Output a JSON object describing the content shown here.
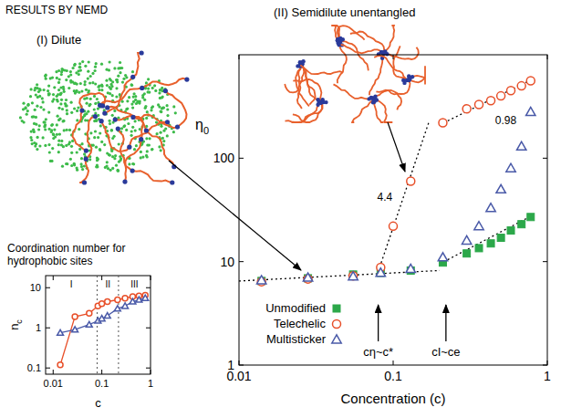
{
  "header": {
    "title": "RESULTS BY NEMD"
  },
  "illustrations": {
    "dilute": "(I) Dilute",
    "semidilute": "(II) Semidilute unentangled"
  },
  "chart_data": [
    {
      "type": "scatter",
      "x_label": "Concentration (c)",
      "y_label": "η0",
      "log": true,
      "xlim": [
        0.01,
        1
      ],
      "ylim": [
        1,
        1000
      ],
      "xticks": [
        0.01,
        0.1,
        1
      ],
      "yticks": [
        1,
        10,
        100
      ],
      "legend": "lower left",
      "series": [
        {
          "name": "Unmodified",
          "color": "#2ca84a",
          "marker": "square",
          "x": [
            0.014,
            0.028,
            0.055,
            0.083,
            0.13,
            0.21,
            0.3,
            0.36,
            0.43,
            0.5,
            0.58,
            0.68,
            0.78
          ],
          "values": [
            6.5,
            6.9,
            7.5,
            7.8,
            8.2,
            9.8,
            12,
            13.5,
            15,
            17,
            20,
            23,
            27
          ]
        },
        {
          "name": "Telechelic",
          "color": "#e8502a",
          "marker": "circle",
          "x": [
            0.014,
            0.028,
            0.055,
            0.083,
            0.1,
            0.13,
            0.21,
            0.3,
            0.36,
            0.43,
            0.5,
            0.58,
            0.68,
            0.78
          ],
          "values": [
            6.4,
            6.8,
            7.3,
            8.8,
            22,
            60,
            220,
            300,
            330,
            360,
            400,
            450,
            500,
            560
          ]
        },
        {
          "name": "Multisticker",
          "color": "#4a5aa8",
          "marker": "triangle",
          "x": [
            0.014,
            0.028,
            0.055,
            0.083,
            0.13,
            0.21,
            0.3,
            0.36,
            0.43,
            0.5,
            0.58,
            0.68,
            0.78
          ],
          "values": [
            6.6,
            7,
            7.2,
            7.8,
            8.5,
            11,
            16,
            22,
            33,
            50,
            80,
            130,
            280
          ]
        }
      ],
      "fit_lines": [
        {
          "x": [
            0.01,
            0.2
          ],
          "values": [
            6.5,
            8.2
          ],
          "line_style": "dotted"
        },
        {
          "x": [
            0.08,
            0.17
          ],
          "values": [
            8,
            220
          ],
          "label": "4.4",
          "line_style": "dotted"
        },
        {
          "x": [
            0.2,
            0.8
          ],
          "values": [
            210,
            580
          ],
          "label": "0.98",
          "line_style": "dotted"
        },
        {
          "x": [
            0.2,
            0.8
          ],
          "values": [
            9.5,
            28
          ],
          "line_style": "dotted"
        }
      ],
      "markers": [
        {
          "text": "cη~c*",
          "x": 0.08
        },
        {
          "text": "cI~ce",
          "x": 0.22
        }
      ]
    },
    {
      "type": "line",
      "title": "Coordination number for hydrophobic sites",
      "x_label": "c",
      "y_label": "nc",
      "log": true,
      "xlim": [
        0.007,
        1
      ],
      "ylim": [
        0.07,
        20
      ],
      "xticks": [
        0.01,
        0.1,
        1
      ],
      "yticks": [
        0.1,
        1,
        10
      ],
      "series": [
        {
          "color": "#e8502a",
          "marker": "circle",
          "x": [
            0.014,
            0.028,
            0.055,
            0.083,
            0.1,
            0.13,
            0.21,
            0.3,
            0.43,
            0.58,
            0.78
          ],
          "values": [
            0.12,
            1.9,
            2.3,
            3.5,
            4,
            4.5,
            5,
            5.5,
            6,
            6.2,
            6.5
          ]
        },
        {
          "color": "#4a5aa8",
          "marker": "triangle",
          "x": [
            0.014,
            0.028,
            0.055,
            0.083,
            0.1,
            0.13,
            0.21,
            0.3,
            0.43,
            0.58,
            0.78
          ],
          "values": [
            0.75,
            0.9,
            1.2,
            1.5,
            1.7,
            2,
            3,
            3.5,
            4.5,
            5,
            5.5
          ]
        }
      ],
      "regions": {
        "x": [
          0.08,
          0.22
        ],
        "labels": [
          "I",
          "II",
          "III"
        ]
      }
    }
  ]
}
